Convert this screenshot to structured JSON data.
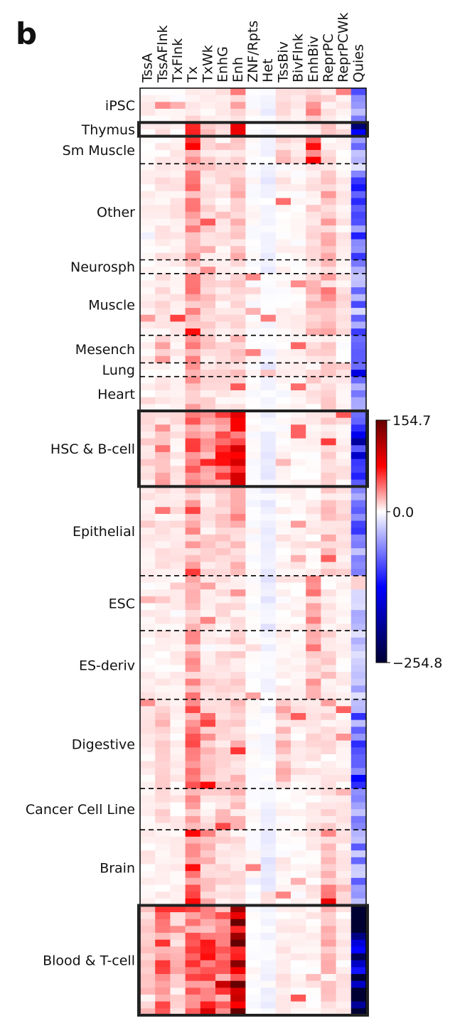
{
  "panel_label": "b",
  "chart_data": {
    "type": "heatmap",
    "title": "",
    "xlabel": "",
    "ylabel": "",
    "columns": [
      "TssA",
      "TssAFlnk",
      "TxFlnk",
      "Tx",
      "TxWk",
      "EnhG",
      "Enh",
      "ZNF/Rpts",
      "Het",
      "TssBiv",
      "BivFlnk",
      "EnhBiv",
      "ReprPC",
      "ReprPCWk",
      "Quies"
    ],
    "groups": [
      {
        "name": "iPSC",
        "rows": 5,
        "highlight": false
      },
      {
        "name": "Thymus",
        "rows": 2,
        "highlight": true
      },
      {
        "name": "Sm Muscle",
        "rows": 4,
        "highlight": false
      },
      {
        "name": "Other",
        "rows": 14,
        "highlight": false
      },
      {
        "name": "Neurosph",
        "rows": 2,
        "highlight": false
      },
      {
        "name": "Muscle",
        "rows": 9,
        "highlight": false
      },
      {
        "name": "Mesench",
        "rows": 4,
        "highlight": false
      },
      {
        "name": "Lung",
        "rows": 2,
        "highlight": false
      },
      {
        "name": "Heart",
        "rows": 5,
        "highlight": false
      },
      {
        "name": "HSC & B-cell",
        "rows": 11,
        "highlight": true
      },
      {
        "name": "Epithelial",
        "rows": 13,
        "highlight": false
      },
      {
        "name": "ESC",
        "rows": 8,
        "highlight": false
      },
      {
        "name": "ES-deriv",
        "rows": 10,
        "highlight": false
      },
      {
        "name": "Digestive",
        "rows": 13,
        "highlight": false
      },
      {
        "name": "Cancer Cell Line",
        "rows": 6,
        "highlight": false
      },
      {
        "name": "Brain",
        "rows": 11,
        "highlight": false
      },
      {
        "name": "Blood & T-cell",
        "rows": 16,
        "highlight": true
      }
    ],
    "group_profiles": {
      "iPSC": [
        5,
        3,
        2,
        10,
        5,
        8,
        10,
        0,
        -8,
        8,
        5,
        25,
        10,
        3,
        -60
      ],
      "Thymus": [
        8,
        10,
        6,
        50,
        18,
        25,
        110,
        0,
        -5,
        2,
        2,
        4,
        15,
        4,
        -200
      ],
      "Sm Muscle": [
        4,
        6,
        4,
        45,
        12,
        12,
        14,
        0,
        -5,
        15,
        10,
        40,
        8,
        3,
        -70
      ],
      "Other": [
        4,
        6,
        5,
        35,
        12,
        12,
        18,
        0,
        -8,
        2,
        2,
        10,
        20,
        6,
        -80
      ],
      "Neurosph": [
        3,
        4,
        3,
        30,
        8,
        6,
        8,
        0,
        -8,
        2,
        2,
        4,
        8,
        3,
        -60
      ],
      "Muscle": [
        6,
        10,
        6,
        35,
        12,
        8,
        12,
        0,
        -4,
        2,
        3,
        20,
        25,
        8,
        -70
      ],
      "Mesench": [
        5,
        25,
        6,
        30,
        12,
        12,
        20,
        0,
        -4,
        2,
        2,
        8,
        12,
        4,
        -60
      ],
      "Lung": [
        4,
        8,
        4,
        25,
        10,
        12,
        16,
        0,
        -15,
        2,
        2,
        6,
        25,
        8,
        -110
      ],
      "Heart": [
        3,
        6,
        3,
        22,
        12,
        8,
        10,
        0,
        -4,
        2,
        2,
        6,
        15,
        5,
        -50
      ],
      "HSC & B-cell": [
        12,
        25,
        8,
        45,
        25,
        60,
        80,
        0,
        -10,
        2,
        3,
        4,
        12,
        6,
        -180
      ],
      "Epithelial": [
        5,
        8,
        8,
        28,
        12,
        14,
        20,
        0,
        -10,
        3,
        4,
        8,
        16,
        10,
        -80
      ],
      "ESC": [
        4,
        6,
        3,
        22,
        8,
        8,
        10,
        0,
        -10,
        4,
        4,
        30,
        6,
        3,
        -40
      ],
      "ES-deriv": [
        5,
        6,
        4,
        28,
        10,
        8,
        10,
        0,
        -5,
        3,
        3,
        18,
        12,
        4,
        -40
      ],
      "Digestive": [
        8,
        15,
        6,
        40,
        18,
        12,
        18,
        0,
        -4,
        20,
        6,
        10,
        10,
        4,
        -90
      ],
      "Cancer Cell Line": [
        6,
        12,
        5,
        30,
        12,
        15,
        20,
        0,
        -10,
        3,
        3,
        6,
        10,
        8,
        -60
      ],
      "Brain": [
        4,
        5,
        3,
        60,
        20,
        10,
        12,
        0,
        -12,
        2,
        2,
        6,
        30,
        8,
        -60
      ],
      "Blood & T-cell": [
        15,
        45,
        15,
        45,
        50,
        45,
        140,
        0,
        -5,
        6,
        4,
        4,
        18,
        6,
        -235
      ]
    },
    "color_scale": {
      "min": -254.8,
      "mid": 0.0,
      "max": 154.7,
      "tick_labels": [
        "154.7",
        "0.0",
        "−254.8"
      ],
      "colors": [
        "#000033",
        "#0000ff",
        "#ffffff",
        "#ff0000",
        "#660000"
      ]
    }
  }
}
